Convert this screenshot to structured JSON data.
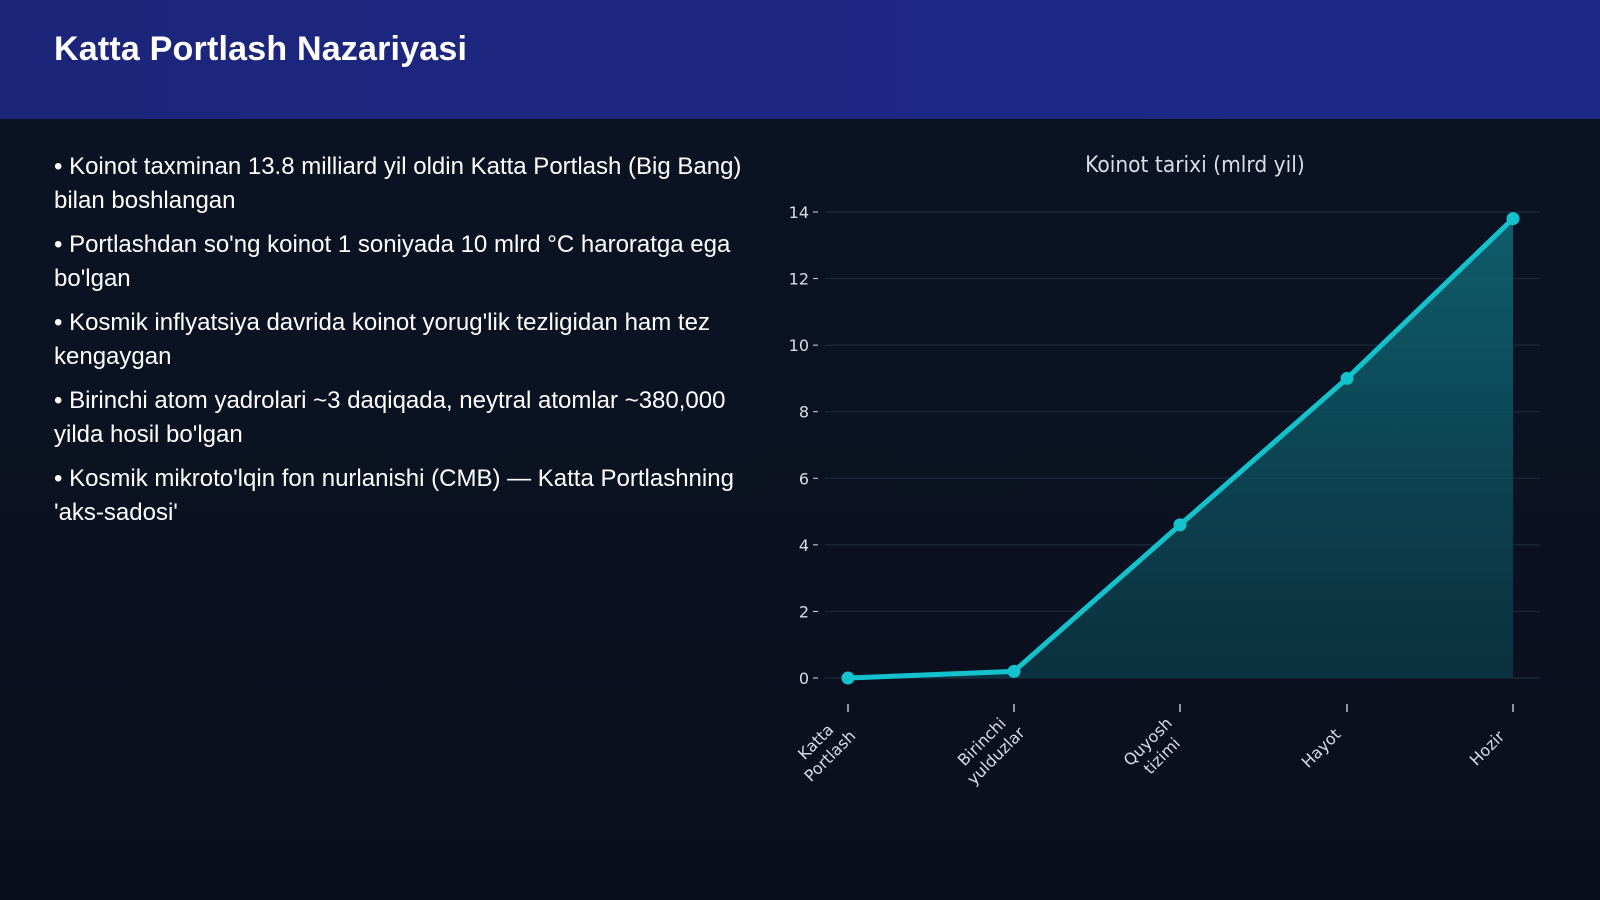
{
  "slide": {
    "title": "Katta Portlash Nazariyasi",
    "bullets": [
      "• Koinot taxminan 13.8 milliard yil oldin Katta Portlash (Big Bang) bilan boshlangan",
      "• Portlashdan so'ng koinot 1 soniyada 10 mlrd °C haroratga ega bo'lgan",
      "• Kosmik inflyatsiya davrida koinot yorug'lik tezligidan ham tez kengaygan",
      "• Birinchi atom yadrolari ~3 daqiqada, neytral atomlar ~380,000 yilda hosil bo'lgan",
      "• Kosmik mikroto'lqin fon nurlanishi (CMB) — Katta Portlashning 'aks-sadosi'"
    ]
  },
  "colors": {
    "header": "#1d2784",
    "background": "#0b1120",
    "line": "#13c2cc",
    "fill": "#0f5f6c",
    "grid": "#1c2a3b",
    "axis_text": "#d8dde6"
  },
  "chart_data": {
    "type": "area",
    "title": "Koinot tarixi (mlrd yil)",
    "categories": [
      [
        "Katta",
        "Portlash"
      ],
      [
        "Birinchi",
        "yulduzlar"
      ],
      [
        "Quyosh",
        "tizimi"
      ],
      [
        "Hayot"
      ],
      [
        "Hozir"
      ]
    ],
    "values": [
      0,
      0.2,
      4.6,
      9.0,
      13.8
    ],
    "ylim": [
      0,
      14
    ],
    "yticks": [
      0,
      2,
      4,
      6,
      8,
      10,
      12,
      14
    ],
    "grid": true,
    "legend": "none"
  }
}
